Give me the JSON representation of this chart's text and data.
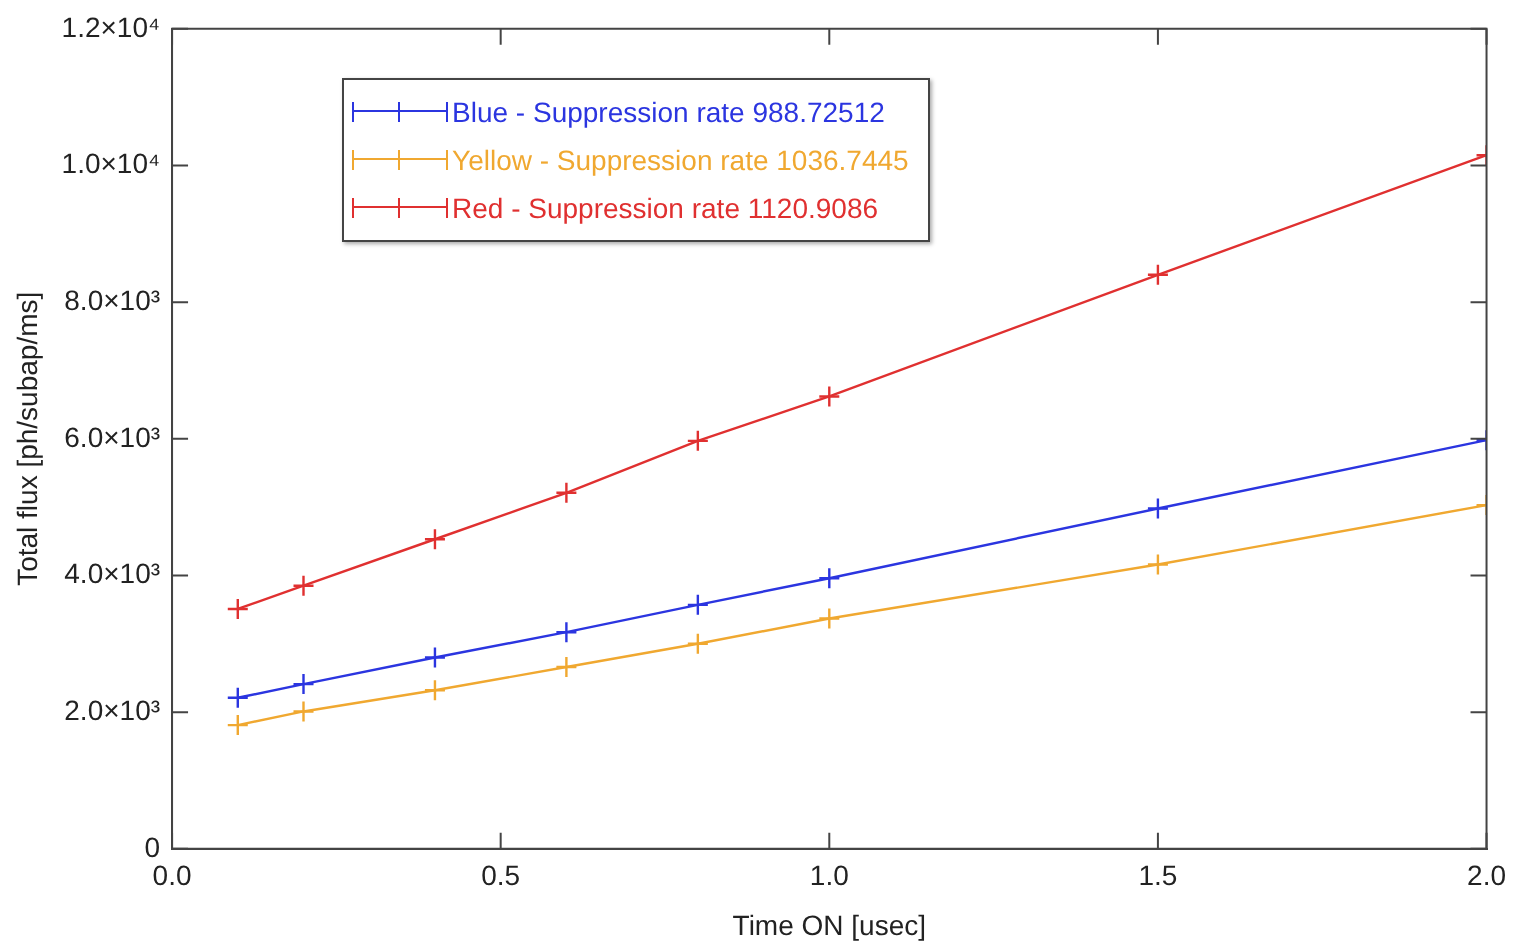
{
  "chart_data": {
    "type": "line",
    "xlabel": "Time ON [usec]",
    "ylabel": "Total flux [ph/subap/ms]",
    "x": [
      0.1,
      0.2,
      0.4,
      0.6,
      0.8,
      1.0,
      1.5,
      2.0
    ],
    "series": [
      {
        "name": "Blue - Suppression rate 988.72512",
        "color": "#2b35e0",
        "values": [
          2210,
          2410,
          2800,
          3170,
          3570,
          3960,
          4980,
          5980
        ]
      },
      {
        "name": "Yellow - Suppression rate 1036.7445",
        "color": "#f0a830",
        "values": [
          1810,
          2010,
          2320,
          2660,
          3000,
          3370,
          4160,
          5030
        ]
      },
      {
        "name": "Red - Suppression rate 1120.9086",
        "color": "#e03030",
        "values": [
          3510,
          3850,
          4530,
          5210,
          5970,
          6620,
          8400,
          10150
        ]
      }
    ],
    "xlim": [
      0,
      2
    ],
    "xticks": [
      {
        "value": 0,
        "label": "0.0"
      },
      {
        "value": 0.5,
        "label": "0.5"
      },
      {
        "value": 1,
        "label": "1.0"
      },
      {
        "value": 1.5,
        "label": "1.5"
      },
      {
        "value": 2,
        "label": "2.0"
      }
    ],
    "ylim": [
      0,
      12000
    ],
    "yticks": [
      {
        "value": 0,
        "label": "0"
      },
      {
        "value": 2000,
        "label": "2.0×10³"
      },
      {
        "value": 4000,
        "label": "4.0×10³"
      },
      {
        "value": 6000,
        "label": "6.0×10³"
      },
      {
        "value": 8000,
        "label": "8.0×10³"
      },
      {
        "value": 10000,
        "label": "1.0×10⁴"
      },
      {
        "value": 12000,
        "label": "1.2×10⁴"
      }
    ],
    "grid": false,
    "legend": "top left",
    "marker": "cross",
    "line_style": "solid"
  }
}
